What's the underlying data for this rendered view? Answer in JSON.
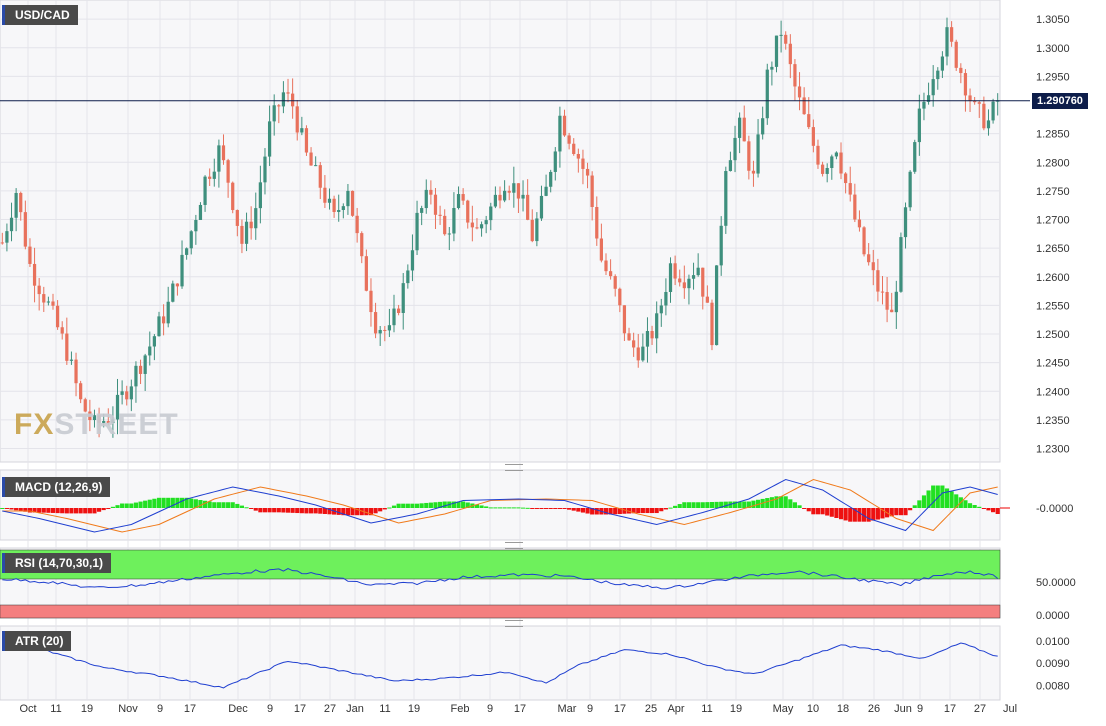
{
  "symbol": "USD/CAD",
  "current_price": "1.290760",
  "watermark": {
    "fx": "FX",
    "rest": "STREET"
  },
  "indicators": {
    "macd": {
      "label": "MACD (12,26,9)",
      "zero_label": "-0.0000"
    },
    "rsi": {
      "label": "RSI (14,70,30,1)",
      "labels": [
        "50.0000",
        "0.0000"
      ]
    },
    "atr": {
      "label": "ATR (20)",
      "labels": [
        "0.0100",
        "0.0090",
        "0.0080"
      ]
    }
  },
  "colors": {
    "bull": "#3e8f7d",
    "bear": "#e8715c",
    "macd_line": "#1f3fd0",
    "signal_line": "#f07a1a",
    "hist_pos": "#22e022",
    "hist_neg": "#ee1111",
    "rsi_over": "#6ef05c",
    "rsi_under": "#f47f7f",
    "price_line": "#0d1d4a"
  },
  "chart_data": {
    "type": "candlestick",
    "ylim": [
      1.228,
      1.308
    ],
    "y_ticks": [
      "1.2300",
      "1.2350",
      "1.2400",
      "1.2450",
      "1.2500",
      "1.2550",
      "1.2600",
      "1.2650",
      "1.2700",
      "1.2750",
      "1.2800",
      "1.2850",
      "1.2950",
      "1.3000",
      "1.3050"
    ],
    "x_ticks": [
      "Oct",
      "11",
      "19",
      "Nov",
      "9",
      "17",
      "Dec",
      "9",
      "17",
      "27",
      "Jan",
      "11",
      "19",
      "Feb",
      "9",
      "17",
      "Mar",
      "9",
      "17",
      "25",
      "Apr",
      "11",
      "19",
      "May",
      "10",
      "18",
      "26",
      "Jun",
      "9",
      "17",
      "27",
      "Jul"
    ],
    "anchors": [
      [
        0,
        1.266
      ],
      [
        3,
        1.275
      ],
      [
        6,
        1.262
      ],
      [
        10,
        1.255
      ],
      [
        14,
        1.247
      ],
      [
        17,
        1.238
      ],
      [
        20,
        1.234
      ],
      [
        24,
        1.236
      ],
      [
        28,
        1.242
      ],
      [
        32,
        1.248
      ],
      [
        36,
        1.255
      ],
      [
        40,
        1.265
      ],
      [
        44,
        1.277
      ],
      [
        47,
        1.282
      ],
      [
        49,
        1.277
      ],
      [
        52,
        1.266
      ],
      [
        55,
        1.272
      ],
      [
        58,
        1.286
      ],
      [
        61,
        1.292
      ],
      [
        63,
        1.29
      ],
      [
        66,
        1.281
      ],
      [
        69,
        1.276
      ],
      [
        72,
        1.27
      ],
      [
        75,
        1.276
      ],
      [
        78,
        1.262
      ],
      [
        81,
        1.252
      ],
      [
        84,
        1.25
      ],
      [
        87,
        1.258
      ],
      [
        90,
        1.27
      ],
      [
        93,
        1.275
      ],
      [
        96,
        1.267
      ],
      [
        99,
        1.273
      ],
      [
        103,
        1.268
      ],
      [
        106,
        1.272
      ],
      [
        109,
        1.277
      ],
      [
        112,
        1.275
      ],
      [
        115,
        1.267
      ],
      [
        118,
        1.275
      ],
      [
        121,
        1.288
      ],
      [
        124,
        1.283
      ],
      [
        127,
        1.277
      ],
      [
        130,
        1.263
      ],
      [
        133,
        1.257
      ],
      [
        136,
        1.248
      ],
      [
        139,
        1.247
      ],
      [
        142,
        1.252
      ],
      [
        145,
        1.262
      ],
      [
        148,
        1.26
      ],
      [
        151,
        1.262
      ],
      [
        154,
        1.25
      ],
      [
        157,
        1.28
      ],
      [
        160,
        1.286
      ],
      [
        163,
        1.277
      ],
      [
        166,
        1.295
      ],
      [
        169,
        1.303
      ],
      [
        172,
        1.293
      ],
      [
        175,
        1.285
      ],
      [
        178,
        1.279
      ],
      [
        181,
        1.283
      ],
      [
        184,
        1.273
      ],
      [
        187,
        1.264
      ],
      [
        190,
        1.258
      ],
      [
        193,
        1.253
      ],
      [
        196,
        1.271
      ],
      [
        199,
        1.288
      ],
      [
        202,
        1.296
      ],
      [
        205,
        1.302
      ],
      [
        208,
        1.296
      ],
      [
        211,
        1.289
      ],
      [
        214,
        1.287
      ],
      [
        216,
        1.2908
      ]
    ],
    "macd_anchors": [
      [
        0,
        -0.1
      ],
      [
        8,
        -0.35
      ],
      [
        20,
        -0.8
      ],
      [
        28,
        -0.55
      ],
      [
        40,
        0.3
      ],
      [
        50,
        0.7
      ],
      [
        60,
        0.4
      ],
      [
        68,
        0.1
      ],
      [
        80,
        -0.5
      ],
      [
        90,
        -0.2
      ],
      [
        100,
        0.25
      ],
      [
        112,
        0.3
      ],
      [
        122,
        0.25
      ],
      [
        132,
        -0.2
      ],
      [
        142,
        -0.55
      ],
      [
        152,
        -0.15
      ],
      [
        162,
        0.3
      ],
      [
        170,
        0.95
      ],
      [
        178,
        0.6
      ],
      [
        188,
        -0.35
      ],
      [
        196,
        -0.75
      ],
      [
        204,
        0.5
      ],
      [
        210,
        0.7
      ],
      [
        216,
        0.45
      ]
    ],
    "rsi_anchors": [
      [
        0,
        55
      ],
      [
        10,
        50
      ],
      [
        20,
        40
      ],
      [
        30,
        45
      ],
      [
        45,
        60
      ],
      [
        55,
        68
      ],
      [
        62,
        70
      ],
      [
        70,
        60
      ],
      [
        80,
        45
      ],
      [
        90,
        48
      ],
      [
        100,
        58
      ],
      [
        112,
        62
      ],
      [
        122,
        60
      ],
      [
        135,
        45
      ],
      [
        145,
        40
      ],
      [
        155,
        52
      ],
      [
        165,
        63
      ],
      [
        172,
        68
      ],
      [
        182,
        58
      ],
      [
        195,
        45
      ],
      [
        203,
        62
      ],
      [
        210,
        68
      ],
      [
        216,
        58
      ]
    ],
    "atr_anchors": [
      [
        0,
        0.0102
      ],
      [
        12,
        0.0094
      ],
      [
        22,
        0.0088
      ],
      [
        35,
        0.0084
      ],
      [
        48,
        0.0079
      ],
      [
        55,
        0.0085
      ],
      [
        62,
        0.0091
      ],
      [
        75,
        0.0086
      ],
      [
        85,
        0.0082
      ],
      [
        95,
        0.0083
      ],
      [
        110,
        0.0086
      ],
      [
        118,
        0.0081
      ],
      [
        125,
        0.0089
      ],
      [
        135,
        0.0096
      ],
      [
        145,
        0.0094
      ],
      [
        155,
        0.0088
      ],
      [
        163,
        0.0085
      ],
      [
        172,
        0.0091
      ],
      [
        182,
        0.0098
      ],
      [
        190,
        0.0096
      ],
      [
        200,
        0.0092
      ],
      [
        208,
        0.0099
      ],
      [
        216,
        0.0093
      ]
    ]
  }
}
